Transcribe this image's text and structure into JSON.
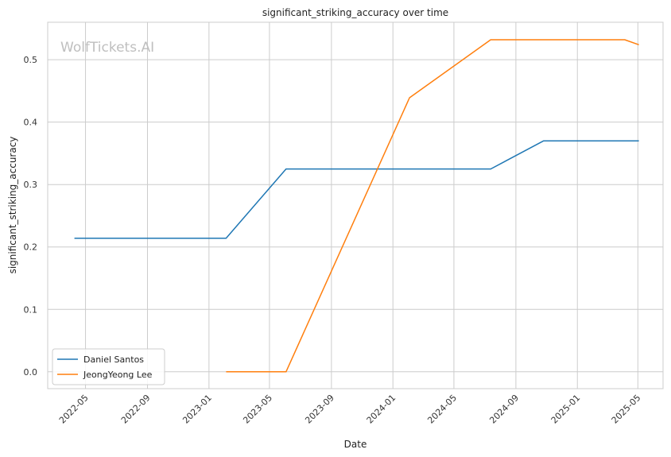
{
  "watermark": "WolfTickets.AI",
  "chart_data": {
    "type": "line",
    "title": "significant_striking_accuracy over time",
    "xlabel": "Date",
    "ylabel": "significant_striking_accuracy",
    "x_ticks": [
      "2022-05",
      "2022-09",
      "2023-01",
      "2023-05",
      "2023-09",
      "2024-01",
      "2024-05",
      "2024-09",
      "2025-01",
      "2025-05"
    ],
    "y_ticks": [
      0.0,
      0.1,
      0.2,
      0.3,
      0.4,
      0.5
    ],
    "ylim": [
      -0.027,
      0.56
    ],
    "xlim": [
      "2022-02-15",
      "2025-06-20"
    ],
    "grid": true,
    "legend_position": "lower-left",
    "series": [
      {
        "name": "Daniel Santos",
        "color": "#1f77b4",
        "points": [
          {
            "x": "2022-04-09",
            "y": 0.214
          },
          {
            "x": "2023-02-04",
            "y": 0.214
          },
          {
            "x": "2023-06-03",
            "y": 0.325
          },
          {
            "x": "2024-07-13",
            "y": 0.325
          },
          {
            "x": "2024-10-26",
            "y": 0.37
          },
          {
            "x": "2025-05-03",
            "y": 0.37
          }
        ]
      },
      {
        "name": "JeongYeong Lee",
        "color": "#ff7f0e",
        "points": [
          {
            "x": "2023-02-04",
            "y": 0.0
          },
          {
            "x": "2023-06-03",
            "y": 0.0
          },
          {
            "x": "2024-02-03",
            "y": 0.439
          },
          {
            "x": "2024-07-13",
            "y": 0.532
          },
          {
            "x": "2025-04-05",
            "y": 0.532
          },
          {
            "x": "2025-05-03",
            "y": 0.524
          }
        ]
      }
    ]
  }
}
